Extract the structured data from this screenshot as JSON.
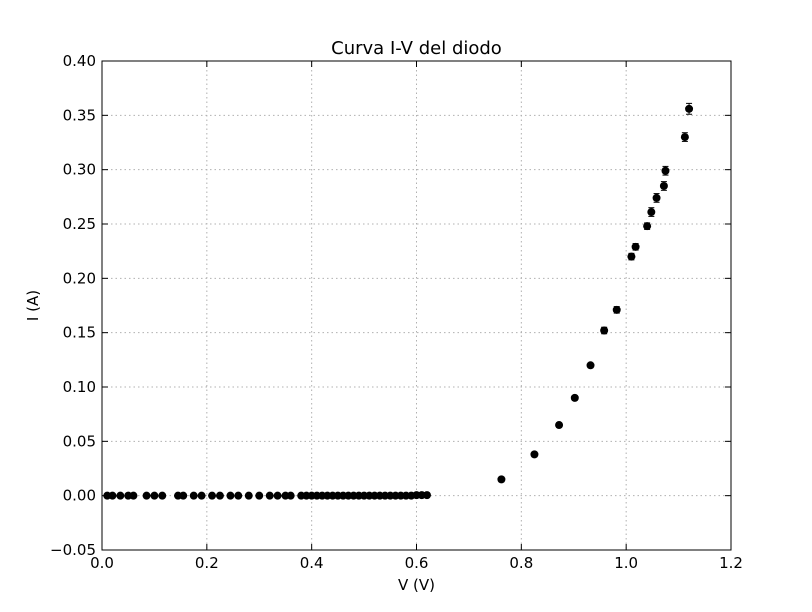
{
  "chart_data": {
    "type": "scatter",
    "title": "Curva I-V del diodo",
    "xlabel": "V (V)",
    "ylabel": "I (A)",
    "xlim": [
      0.0,
      1.2
    ],
    "ylim": [
      -0.05,
      0.4
    ],
    "x_ticks": [
      0.0,
      0.2,
      0.4,
      0.6,
      0.8,
      1.0,
      1.2
    ],
    "x_tick_labels": [
      "0.0",
      "0.2",
      "0.4",
      "0.6",
      "0.8",
      "1.0",
      "1.2"
    ],
    "y_ticks": [
      -0.05,
      0.0,
      0.05,
      0.1,
      0.15,
      0.2,
      0.25,
      0.3,
      0.35,
      0.4
    ],
    "y_tick_labels": [
      "−0.05",
      "0.00",
      "0.05",
      "0.10",
      "0.15",
      "0.20",
      "0.25",
      "0.30",
      "0.35",
      "0.40"
    ],
    "grid": true,
    "marker_color": "#000000",
    "series": [
      {
        "x": [
          0.01,
          0.02,
          0.035,
          0.05,
          0.06,
          0.085,
          0.1,
          0.115,
          0.145,
          0.155,
          0.175,
          0.19,
          0.21,
          0.225,
          0.245,
          0.26,
          0.28,
          0.3,
          0.32,
          0.335,
          0.35,
          0.36,
          0.38,
          0.39,
          0.4,
          0.41,
          0.42,
          0.43,
          0.44,
          0.45,
          0.46,
          0.47,
          0.48,
          0.49,
          0.5,
          0.51,
          0.52,
          0.53,
          0.54,
          0.55,
          0.56,
          0.57,
          0.58,
          0.59,
          0.6,
          0.61,
          0.62,
          0.762,
          0.825,
          0.872,
          0.902,
          0.932,
          0.958,
          0.982,
          1.01,
          1.018,
          1.04,
          1.048,
          1.058,
          1.072,
          1.075,
          1.112,
          1.12
        ],
        "y": [
          0.0,
          0.0,
          0.0,
          0.0,
          0.0,
          0.0,
          0.0,
          0.0,
          0.0,
          0.0,
          0.0,
          0.0,
          0.0,
          0.0,
          0.0,
          0.0,
          0.0,
          0.0,
          0.0,
          0.0,
          0.0,
          0.0,
          0.0,
          0.0,
          0.0,
          0.0,
          0.0,
          0.0,
          0.0,
          0.0,
          0.0,
          0.0,
          0.0,
          0.0,
          0.0,
          0.0,
          0.0,
          0.0,
          0.0,
          0.0,
          0.0,
          0.0,
          0.0,
          0.0,
          0.0005,
          0.0005,
          0.0005,
          0.015,
          0.038,
          0.065,
          0.09,
          0.12,
          0.152,
          0.171,
          0.22,
          0.229,
          0.248,
          0.261,
          0.274,
          0.285,
          0.299,
          0.33,
          0.356
        ],
        "yerr": [
          0.001,
          0.001,
          0.001,
          0.001,
          0.001,
          0.001,
          0.001,
          0.001,
          0.001,
          0.001,
          0.001,
          0.001,
          0.001,
          0.001,
          0.001,
          0.001,
          0.001,
          0.001,
          0.001,
          0.001,
          0.001,
          0.001,
          0.001,
          0.001,
          0.001,
          0.001,
          0.001,
          0.001,
          0.001,
          0.001,
          0.001,
          0.001,
          0.001,
          0.001,
          0.001,
          0.001,
          0.001,
          0.001,
          0.001,
          0.001,
          0.001,
          0.001,
          0.001,
          0.001,
          0.001,
          0.001,
          0.001,
          0.002,
          0.002,
          0.002,
          0.002,
          0.002,
          0.003,
          0.003,
          0.003,
          0.003,
          0.003,
          0.004,
          0.004,
          0.004,
          0.004,
          0.004,
          0.005
        ]
      }
    ]
  }
}
